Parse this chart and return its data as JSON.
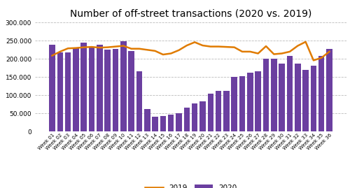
{
  "title": "Number of off-street transactions (2020 vs. 2019)",
  "weeks": [
    "Week 01",
    "Week 02",
    "Week 03",
    "Week 04",
    "Week 05",
    "Week 06",
    "Week 07",
    "Week 08",
    "Week 09",
    "Week 10",
    "Week 11",
    "Week 12",
    "Week 13",
    "Week 14",
    "Week 15",
    "Week 16",
    "Week 17",
    "Week 18",
    "Week 19",
    "Week 20",
    "Week 21",
    "Week 22",
    "Week 23",
    "Week 24",
    "Week 25",
    "Week 26",
    "Week 27",
    "Week 28",
    "Week 29",
    "Week 30",
    "Week 31",
    "Week 32",
    "Week 33",
    "Week 34",
    "Week 35",
    "Week 36"
  ],
  "bars_2020": [
    239000,
    218000,
    217000,
    232000,
    245000,
    233000,
    239000,
    226000,
    227000,
    248000,
    222000,
    165000,
    62000,
    40000,
    42000,
    46000,
    50000,
    65000,
    78000,
    83000,
    105000,
    113000,
    112000,
    150000,
    152000,
    163000,
    166000,
    200000,
    201000,
    187000,
    209000,
    187000,
    169000,
    181000,
    208000,
    227000
  ],
  "line_2019": [
    209000,
    220000,
    229000,
    230000,
    232000,
    233000,
    231000,
    232000,
    234000,
    236000,
    228000,
    228000,
    225000,
    222000,
    212000,
    215000,
    224000,
    237000,
    246000,
    237000,
    234000,
    234000,
    233000,
    232000,
    220000,
    220000,
    215000,
    235000,
    213000,
    215000,
    220000,
    236000,
    247000,
    196000,
    203000,
    220000
  ],
  "bar_color": "#6b3fa0",
  "line_color": "#e07b00",
  "ylim": [
    0,
    300000
  ],
  "yticks": [
    0,
    50000,
    100000,
    150000,
    200000,
    250000,
    300000
  ],
  "background_color": "#ffffff",
  "grid_color": "#bbbbbb",
  "title_fontsize": 10,
  "legend_2020": "2020",
  "legend_2019": "2019"
}
